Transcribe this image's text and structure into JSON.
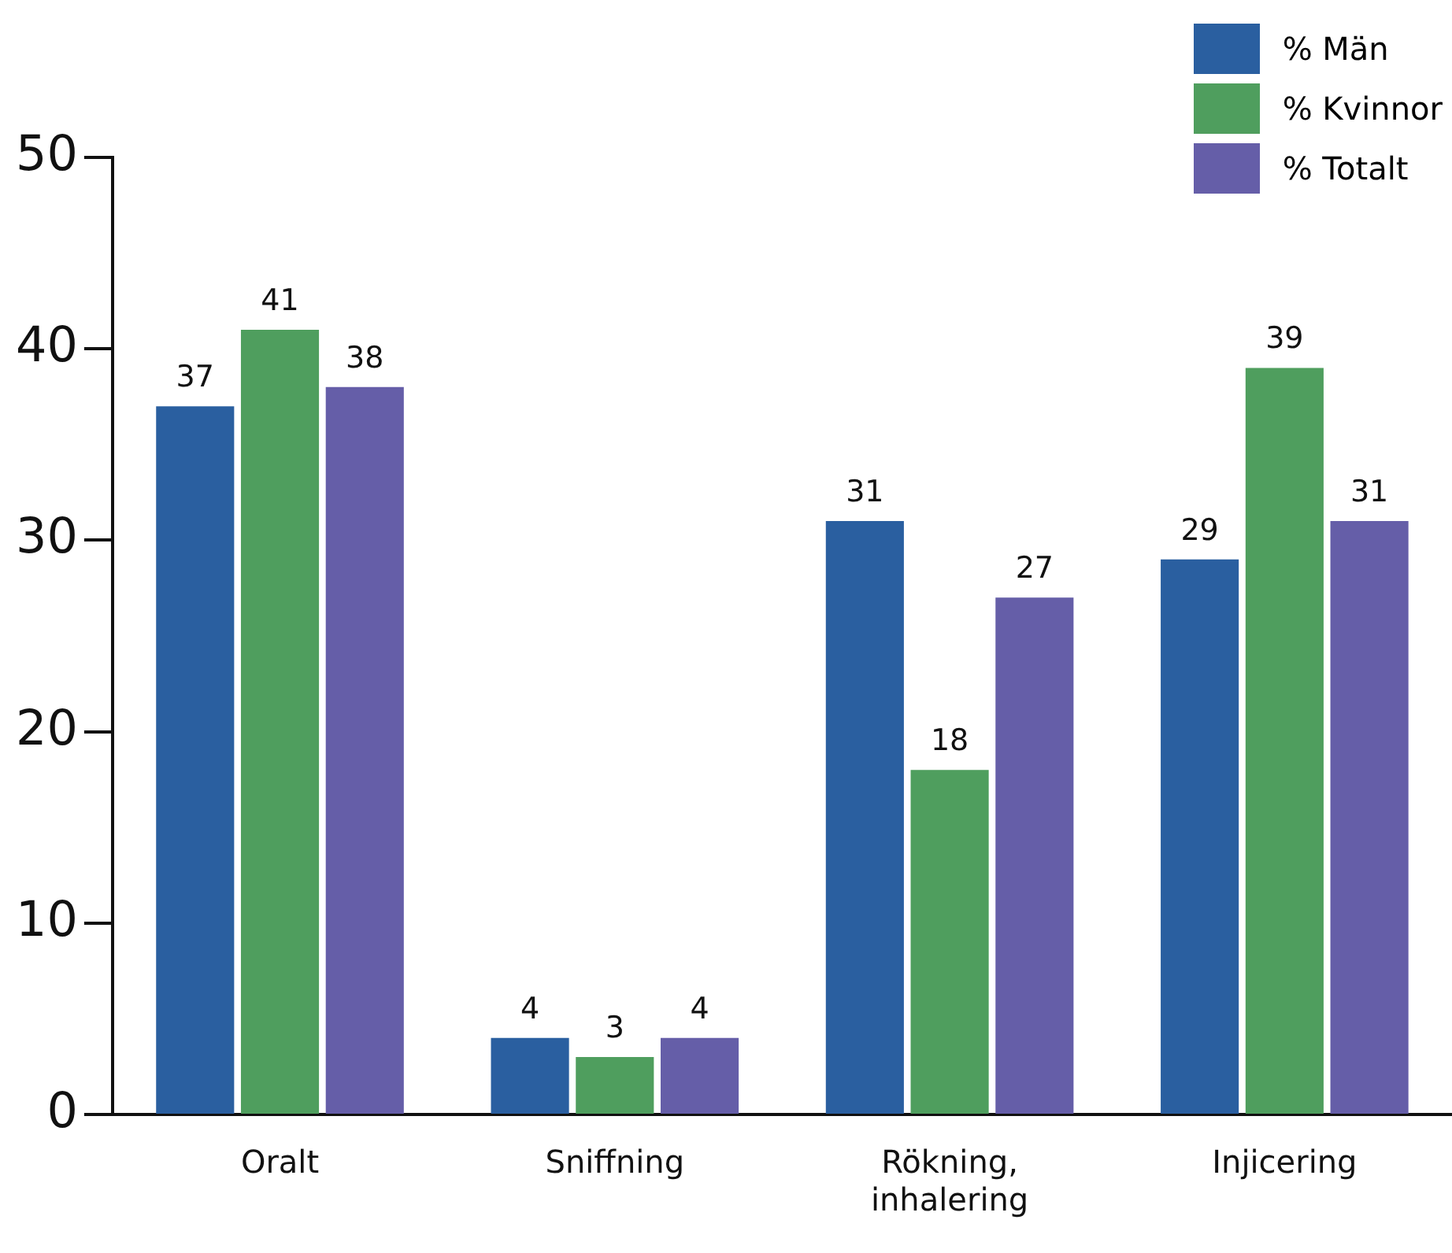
{
  "chart_data": {
    "type": "bar",
    "categories": [
      "Oralt",
      "Sniffning",
      "Rökning, inhalering",
      "Injicering"
    ],
    "series": [
      {
        "name": "% Män",
        "color": "#2a5fa0",
        "values": [
          37,
          4,
          31,
          29
        ]
      },
      {
        "name": "% Kvinnor",
        "color": "#4f9e5e",
        "values": [
          41,
          3,
          18,
          39
        ]
      },
      {
        "name": "% Totalt",
        "color": "#655ea8",
        "values": [
          38,
          4,
          27,
          31
        ]
      }
    ],
    "ylim": [
      0,
      50
    ],
    "yticks": [
      0,
      10,
      20,
      30,
      40,
      50
    ],
    "grid": false,
    "legend": "top right",
    "data_labels": true
  }
}
